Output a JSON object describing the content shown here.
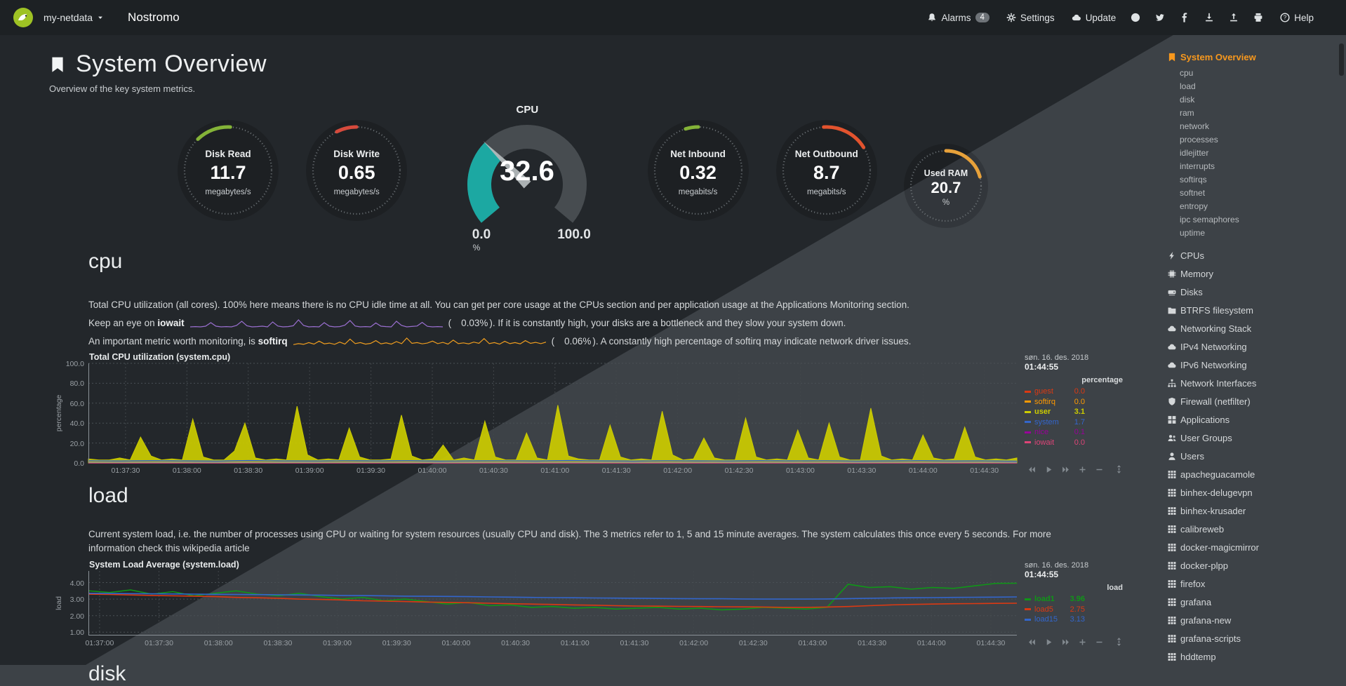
{
  "navbar": {
    "brand_menu": {
      "label": "my-netdata"
    },
    "hostname": "Nostromo",
    "alarms": {
      "label": "Alarms",
      "badge": "4"
    },
    "settings": {
      "label": "Settings"
    },
    "update": {
      "label": "Update"
    },
    "help": {
      "label": "Help"
    }
  },
  "header": {
    "title": "System Overview",
    "subtitle": "Overview of the key system metrics."
  },
  "gauges": {
    "items": [
      {
        "label": "Disk Read",
        "value": "11.7",
        "units": "megabytes/s",
        "color": "#84b338",
        "arc_start": -44,
        "arc_end": 3
      },
      {
        "label": "Disk Write",
        "value": "0.65",
        "units": "megabytes/s",
        "color": "#d64a3c",
        "arc_start": -27,
        "arc_end": 0
      },
      {
        "label": "Net Inbound",
        "value": "0.32",
        "units": "megabits/s",
        "color": "#84b338",
        "arc_start": -17,
        "arc_end": 0
      },
      {
        "label": "Net Outbound",
        "value": "8.7",
        "units": "megabits/s",
        "color": "#e2532e",
        "arc_start": -4,
        "arc_end": 58
      },
      {
        "label": "Used RAM",
        "value": "20.7",
        "units": "%",
        "color": "#e7a13a",
        "arc_start": 0,
        "arc_end": 75,
        "small": true
      }
    ],
    "cpu": {
      "title": "CPU",
      "value": "32.6",
      "min": "0.0",
      "max": "100.0",
      "units": "%",
      "fraction": 0.326,
      "color": "#1ca8a2"
    }
  },
  "sections": {
    "cpu": {
      "heading": "cpu",
      "description": "Total CPU utilization (all cores). 100% here means there is no CPU idle time at all. You can get per core usage at the CPUs section and per application usage at the Applications Monitoring section.",
      "iowait_line": {
        "prefix": "Keep an eye on ",
        "keyword": "iowait",
        "value_open": "(",
        "value": "0.03%",
        "suffix": "). If it is constantly high, your disks are a bottleneck and they slow your system down."
      },
      "softirq_line": {
        "prefix": "An important metric worth monitoring, is ",
        "keyword": "softirq",
        "value_open": "(",
        "value": "0.06%",
        "suffix": "). A constantly high percentage of softirq may indicate network driver issues."
      }
    },
    "load": {
      "heading": "load",
      "description": "Current system load, i.e. the number of processes using CPU or waiting for system resources (usually CPU and disk). The 3 metrics refer to 1, 5 and 15 minute averages. The system calculates this once every 5 seconds. For more information check this wikipedia article"
    },
    "disk_heading": "disk"
  },
  "chart_data": [
    {
      "id": "system.cpu",
      "type": "area",
      "title": "Total CPU utilization (system.cpu)",
      "ylabel": "percentage",
      "ylim": [
        0,
        100
      ],
      "yticks": [
        "100.0",
        "80.0",
        "60.0",
        "40.0",
        "20.0",
        "0.0"
      ],
      "xticks": [
        "01:37:30",
        "01:38:00",
        "01:38:30",
        "01:39:00",
        "01:39:30",
        "01:40:00",
        "01:40:30",
        "01:41:00",
        "01:41:30",
        "01:42:00",
        "01:42:30",
        "01:43:00",
        "01:43:30",
        "01:44:00",
        "01:44:30"
      ],
      "xtick_start": 0.04,
      "xtick_end": 0.965,
      "grid": true,
      "legend_position": "right",
      "legend_date": "søn. 16. des. 2018",
      "legend_time": "01:44:55",
      "legend_units": "percentage",
      "series": [
        {
          "name": "guest",
          "color": "#DC3912",
          "value": "0.0",
          "style": "area",
          "values": [
            0.4,
            0.4
          ]
        },
        {
          "name": "softirq",
          "color": "#FF9900",
          "value": "0.0",
          "style": "area",
          "values": [
            0.8,
            0.6,
            1,
            0.7,
            1.4,
            0.8,
            0.6,
            1.1,
            0.7,
            0.9,
            1.6,
            0.7,
            0.8,
            1,
            0.6,
            1.3,
            0.8,
            0.7,
            1.1,
            0.9,
            0.7,
            1.5,
            0.8,
            0.6,
            1,
            0.8,
            1.2,
            0.7,
            0.9,
            0.6,
            1.4,
            0.8,
            0.7,
            1,
            0.9,
            0.7,
            1.2,
            0.8,
            0.6,
            1.1,
            0.7,
            0.9,
            1.3,
            0.7,
            0.8
          ]
        },
        {
          "name": "user",
          "color": "#CCCC00",
          "value": "3.1",
          "style": "area",
          "highlight": true,
          "values": [
            4,
            3,
            3,
            5,
            3,
            26,
            7,
            3,
            4,
            3,
            44,
            6,
            3,
            3,
            12,
            40,
            5,
            3,
            4,
            3,
            57,
            8,
            3,
            4,
            3,
            35,
            6,
            3,
            3,
            4,
            48,
            7,
            3,
            4,
            18,
            3,
            5,
            3,
            42,
            6,
            3,
            3,
            30,
            5,
            3,
            58,
            7,
            4,
            3,
            3,
            38,
            6,
            3,
            4,
            3,
            52,
            8,
            3,
            4,
            25,
            5,
            3,
            3,
            45,
            6,
            3,
            4,
            3,
            33,
            5,
            3,
            40,
            6,
            3,
            3,
            55,
            7,
            3,
            4,
            3,
            28,
            5,
            3,
            4,
            36,
            6,
            3,
            4,
            3,
            5
          ]
        },
        {
          "name": "system",
          "color": "#3366CC",
          "value": "1.7",
          "style": "line",
          "values": [
            2.1,
            1.9,
            2.2,
            2,
            1.8,
            2.3,
            2,
            1.9,
            2.1,
            2,
            2.2,
            1.8,
            2,
            2.1,
            1.9,
            2.3,
            2,
            1.8,
            2.1,
            2,
            1.9,
            2.2,
            2,
            2.1,
            1.8,
            2,
            2.2,
            1.9,
            2,
            1.7
          ]
        },
        {
          "name": "nice",
          "color": "#990099",
          "value": "0.1",
          "style": "line",
          "values": [
            0.2,
            0.2
          ]
        },
        {
          "name": "iowait",
          "color": "#DD4477",
          "value": "0.0",
          "style": "line",
          "values": [
            0.1,
            0.1
          ]
        }
      ]
    },
    {
      "id": "system.load",
      "type": "line",
      "title": "System Load Average (system.load)",
      "ylabel": "load",
      "ylim": [
        0.8,
        4.7
      ],
      "yticks": [
        "4.00",
        "3.00",
        "2.00",
        "1.00"
      ],
      "xticks": [
        "01:37:00",
        "01:37:30",
        "01:38:00",
        "01:38:30",
        "01:39:00",
        "01:39:30",
        "01:40:00",
        "01:40:30",
        "01:41:00",
        "01:41:30",
        "01:42:00",
        "01:42:30",
        "01:43:00",
        "01:43:30",
        "01:44:00",
        "01:44:30"
      ],
      "xtick_start": 0.012,
      "xtick_end": 0.972,
      "grid": true,
      "legend_position": "right",
      "legend_date": "søn. 16. des. 2018",
      "legend_time": "01:44:55",
      "legend_units": "load",
      "series": [
        {
          "name": "load1",
          "color": "#109618",
          "value": "3.96",
          "style": "line",
          "highlight": true,
          "values": [
            3.5,
            3.4,
            3.55,
            3.3,
            3.45,
            3.2,
            3.35,
            3.5,
            3.3,
            3.2,
            3.35,
            3.15,
            3.0,
            3.1,
            2.9,
            3.0,
            2.85,
            2.7,
            2.8,
            2.6,
            2.65,
            2.5,
            2.55,
            2.45,
            2.5,
            2.4,
            2.45,
            2.5,
            2.4,
            2.45,
            2.35,
            2.4,
            2.5,
            2.45,
            2.4,
            2.5,
            3.9,
            3.7,
            3.75,
            3.6,
            3.7,
            3.65,
            3.8,
            3.95,
            3.96
          ]
        },
        {
          "name": "load5",
          "color": "#DC3912",
          "value": "2.75",
          "style": "line",
          "values": [
            3.3,
            3.28,
            3.25,
            3.22,
            3.2,
            3.18,
            3.15,
            3.1,
            3.08,
            3.05,
            3.0,
            2.98,
            2.95,
            2.9,
            2.88,
            2.85,
            2.82,
            2.8,
            2.78,
            2.75,
            2.72,
            2.7,
            2.68,
            2.65,
            2.63,
            2.6,
            2.58,
            2.57,
            2.56,
            2.55,
            2.54,
            2.53,
            2.52,
            2.5,
            2.5,
            2.52,
            2.55,
            2.6,
            2.65,
            2.68,
            2.7,
            2.72,
            2.73,
            2.74,
            2.75
          ]
        },
        {
          "name": "load15",
          "color": "#3366CC",
          "value": "3.13",
          "style": "line",
          "values": [
            3.35,
            3.34,
            3.33,
            3.32,
            3.31,
            3.3,
            3.29,
            3.28,
            3.27,
            3.26,
            3.25,
            3.24,
            3.22,
            3.21,
            3.2,
            3.18,
            3.17,
            3.16,
            3.15,
            3.13,
            3.12,
            3.1,
            3.09,
            3.08,
            3.07,
            3.06,
            3.05,
            3.04,
            3.03,
            3.02,
            3.02,
            3.01,
            3.0,
            3.0,
            3.0,
            3.01,
            3.03,
            3.05,
            3.07,
            3.08,
            3.09,
            3.1,
            3.11,
            3.12,
            3.13
          ]
        }
      ]
    },
    {
      "id": "iowait-sparkline",
      "type": "line",
      "color": "#9a6fd0",
      "values": [
        0,
        0.02,
        0,
        0.05,
        0.3,
        0.05,
        0,
        0.02,
        0,
        0.1,
        0.4,
        0.08,
        0,
        0.02,
        0.05,
        0,
        0.35,
        0.06,
        0,
        0.02,
        0.08,
        0.5,
        0.1,
        0,
        0.02,
        0,
        0.3,
        0.05,
        0,
        0.02,
        0.12,
        0.45,
        0.06,
        0,
        0.02,
        0,
        0.28,
        0.05,
        0.02,
        0,
        0.4,
        0.1,
        0,
        0.03,
        0.06,
        0.32,
        0.04,
        0,
        0.02,
        0
      ]
    },
    {
      "id": "softirq-sparkline",
      "type": "line",
      "color": "#ef9d1f",
      "values": [
        0.1,
        0.3,
        0.15,
        0.5,
        0.2,
        0.8,
        0.25,
        0.4,
        0.15,
        0.6,
        0.2,
        1.2,
        0.3,
        0.5,
        0.2,
        0.35,
        0.9,
        0.25,
        0.45,
        0.2,
        0.7,
        0.3,
        1.4,
        0.35,
        0.5,
        0.25,
        0.4,
        0.8,
        0.3,
        0.55,
        0.2,
        1.0,
        0.3,
        0.45,
        0.25,
        0.6,
        0.35,
        1.3,
        0.3,
        0.5,
        0.2,
        0.75,
        0.3,
        0.5,
        0.25,
        0.9,
        0.35,
        0.55,
        0.3,
        0.6
      ]
    }
  ],
  "sidebar": {
    "items": [
      {
        "label": "System Overview",
        "icon": "bookmark-icon",
        "active": true
      },
      {
        "label": "cpu",
        "sub": true
      },
      {
        "label": "load",
        "sub": true
      },
      {
        "label": "disk",
        "sub": true
      },
      {
        "label": "ram",
        "sub": true
      },
      {
        "label": "network",
        "sub": true
      },
      {
        "label": "processes",
        "sub": true
      },
      {
        "label": "idlejitter",
        "sub": true
      },
      {
        "label": "interrupts",
        "sub": true
      },
      {
        "label": "softirqs",
        "sub": true
      },
      {
        "label": "softnet",
        "sub": true
      },
      {
        "label": "entropy",
        "sub": true
      },
      {
        "label": "ipc semaphores",
        "sub": true
      },
      {
        "label": "uptime",
        "sub": true
      },
      {
        "label": "CPUs",
        "icon": "bolt-icon",
        "gap": true
      },
      {
        "label": "Memory",
        "icon": "memory-icon"
      },
      {
        "label": "Disks",
        "icon": "disk-icon"
      },
      {
        "label": "BTRFS filesystem",
        "icon": "folder-icon"
      },
      {
        "label": "Networking Stack",
        "icon": "cloud-icon"
      },
      {
        "label": "IPv4 Networking",
        "icon": "cloud-icon"
      },
      {
        "label": "IPv6 Networking",
        "icon": "cloud-icon"
      },
      {
        "label": "Network Interfaces",
        "icon": "sitemap-icon"
      },
      {
        "label": "Firewall (netfilter)",
        "icon": "shield-icon"
      },
      {
        "label": "Applications",
        "icon": "apps-icon"
      },
      {
        "label": "User Groups",
        "icon": "users-icon"
      },
      {
        "label": "Users",
        "icon": "user-icon"
      },
      {
        "label": "apacheguacamole",
        "icon": "grid-icon"
      },
      {
        "label": "binhex-delugevpn",
        "icon": "grid-icon"
      },
      {
        "label": "binhex-krusader",
        "icon": "grid-icon"
      },
      {
        "label": "calibreweb",
        "icon": "grid-icon"
      },
      {
        "label": "docker-magicmirror",
        "icon": "grid-icon"
      },
      {
        "label": "docker-plpp",
        "icon": "grid-icon"
      },
      {
        "label": "firefox",
        "icon": "grid-icon"
      },
      {
        "label": "grafana",
        "icon": "grid-icon"
      },
      {
        "label": "grafana-new",
        "icon": "grid-icon"
      },
      {
        "label": "grafana-scripts",
        "icon": "grid-icon"
      },
      {
        "label": "hddtemp",
        "icon": "grid-icon"
      }
    ]
  }
}
